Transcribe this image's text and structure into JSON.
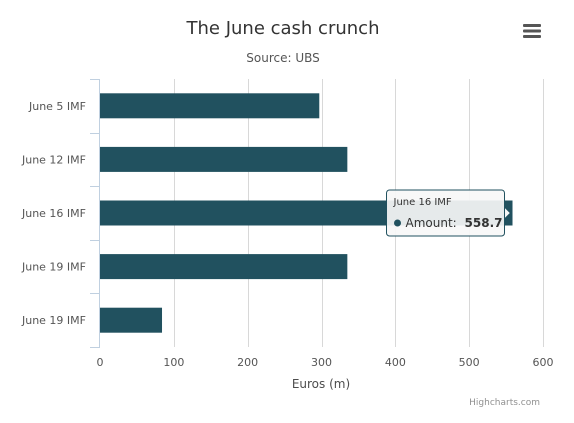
{
  "chart_data": {
    "type": "bar",
    "orientation": "horizontal",
    "title": "The June cash crunch",
    "subtitle": "Source: UBS",
    "categories": [
      "June 5 IMF",
      "June 12 IMF",
      "June 16 IMF",
      "June 19 IMF",
      "June 19 IMF"
    ],
    "series": [
      {
        "name": "Amount",
        "values": [
          297,
          335,
          558.7,
          335,
          84
        ]
      }
    ],
    "xlabel": "Euros (m)",
    "xlim": [
      0,
      600
    ],
    "xticks": [
      0,
      100,
      200,
      300,
      400,
      500,
      600
    ],
    "grid": true,
    "legend": "none",
    "bar_color": "#21515f",
    "tooltip": {
      "category": "June 16 IMF",
      "series_label": "Amount:",
      "value": "558.7"
    }
  },
  "menu": {
    "icon": "hamburger-menu-icon"
  },
  "credits": "Highcharts.com"
}
